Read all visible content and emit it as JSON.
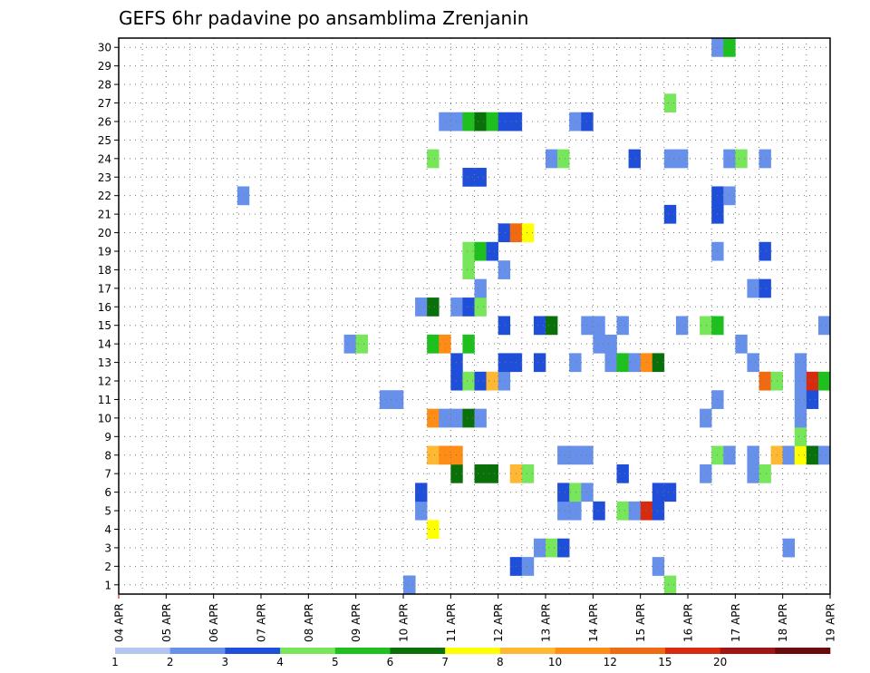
{
  "chart_data": {
    "type": "heatmap",
    "title": "GEFS 6hr padavine po ansamblima Zrenjanin",
    "x_ticks": [
      "04 APR",
      "05 APR",
      "06 APR",
      "07 APR",
      "08 APR",
      "09 APR",
      "10 APR",
      "11 APR",
      "12 APR",
      "13 APR",
      "14 APR",
      "15 APR",
      "16 APR",
      "17 APR",
      "18 APR",
      "19 APR"
    ],
    "y_ticks": [
      1,
      2,
      3,
      4,
      5,
      6,
      7,
      8,
      9,
      10,
      11,
      12,
      13,
      14,
      15,
      16,
      17,
      18,
      19,
      20,
      21,
      22,
      23,
      24,
      25,
      26,
      27,
      28,
      29,
      30
    ],
    "grid": true,
    "legend": {
      "placement": "bottom",
      "thresholds": [
        "1",
        "2",
        "3",
        "4",
        "5",
        "6",
        "7",
        "8",
        "10",
        "12",
        "15",
        "20"
      ],
      "colors": [
        "#b3c6f2",
        "#6690ea",
        "#1f4ed9",
        "#77e65a",
        "#1dc01d",
        "#0a700a",
        "#ffff00",
        "#ffb833",
        "#ff8c14",
        "#ef6a10",
        "#d62b0f",
        "#a01414",
        "#6a0a0a"
      ]
    },
    "cells": [
      {
        "t": "2026-04-10 00:00",
        "m": [
          1,
          1,
          1
        ],
        "c": [
          4,
          5,
          1
        ]
      },
      {
        "t": "2026-04-08 18:00",
        "m": [
          14
        ],
        "c": [
          1
        ]
      },
      {
        "t": "2026-04-09 00:00",
        "m": [
          14
        ],
        "c": [
          3
        ]
      },
      {
        "t": "2026-04-09 12:00",
        "m": [
          11
        ],
        "c": [
          1
        ]
      },
      {
        "t": "2026-04-09 18:00",
        "m": [
          11
        ],
        "c": [
          1
        ]
      },
      {
        "t": "2026-04-06 12:00",
        "m": [
          22
        ],
        "c": [
          1
        ]
      },
      {
        "t": "2026-04-10 06:00",
        "m": [
          5,
          6,
          16
        ],
        "c": [
          1,
          2,
          1
        ]
      },
      {
        "t": "2026-04-10 12:00",
        "m": [
          4,
          8,
          10,
          14,
          16,
          24
        ],
        "c": [
          6,
          7,
          8,
          4,
          5,
          3
        ]
      },
      {
        "t": "2026-04-10 18:00",
        "m": [
          8,
          10,
          14,
          26
        ],
        "c": [
          8,
          1,
          8,
          1
        ]
      },
      {
        "t": "2026-04-11 00:00",
        "m": [
          7,
          8,
          10,
          12,
          13,
          16,
          26
        ],
        "c": [
          5,
          8,
          1,
          2,
          2,
          1,
          1
        ]
      },
      {
        "t": "2026-04-11 06:00",
        "m": [
          10,
          12,
          14,
          16,
          18,
          19,
          23,
          26
        ],
        "c": [
          5,
          3,
          4,
          2,
          3,
          3,
          2,
          4
        ]
      },
      {
        "t": "2026-04-11 12:00",
        "m": [
          7,
          10,
          12,
          16,
          17,
          19,
          23,
          26
        ],
        "c": [
          5,
          1,
          2,
          3,
          1,
          4,
          2,
          5
        ]
      },
      {
        "t": "2026-04-11 18:00",
        "m": [
          7,
          12,
          19,
          26
        ],
        "c": [
          5,
          7,
          2,
          4
        ]
      },
      {
        "t": "2026-04-12 00:00",
        "m": [
          12,
          13,
          15,
          18,
          20,
          26
        ],
        "c": [
          1,
          2,
          2,
          1,
          2,
          2
        ]
      },
      {
        "t": "2026-04-12 06:00",
        "m": [
          2,
          7,
          13,
          20,
          26
        ],
        "c": [
          2,
          7,
          2,
          9,
          2
        ]
      },
      {
        "t": "2026-04-12 12:00",
        "m": [
          2,
          7,
          20
        ],
        "c": [
          1,
          3,
          6
        ]
      },
      {
        "t": "2026-04-12 18:00",
        "m": [
          3,
          13,
          15
        ],
        "c": [
          1,
          2,
          2
        ]
      },
      {
        "t": "2026-04-13 00:00",
        "m": [
          3,
          15,
          24
        ],
        "c": [
          3,
          5,
          1
        ]
      },
      {
        "t": "2026-04-13 06:00",
        "m": [
          3,
          5,
          6,
          8,
          24
        ],
        "c": [
          2,
          1,
          2,
          1,
          3
        ]
      },
      {
        "t": "2026-04-13 12:00",
        "m": [
          5,
          6,
          8,
          13,
          26
        ],
        "c": [
          1,
          3,
          1,
          1,
          1
        ]
      },
      {
        "t": "2026-04-13 18:00",
        "m": [
          6,
          8,
          15,
          26
        ],
        "c": [
          1,
          1,
          1,
          2
        ]
      },
      {
        "t": "2026-04-14 00:00",
        "m": [
          5,
          14,
          15
        ],
        "c": [
          2,
          1,
          1
        ]
      },
      {
        "t": "2026-04-14 06:00",
        "m": [
          13,
          14
        ],
        "c": [
          1,
          1
        ]
      },
      {
        "t": "2026-04-14 12:00",
        "m": [
          5,
          7,
          13,
          15
        ],
        "c": [
          3,
          2,
          4,
          1
        ]
      },
      {
        "t": "2026-04-14 18:00",
        "m": [
          5,
          13,
          24
        ],
        "c": [
          1,
          1,
          2
        ]
      },
      {
        "t": "2026-04-15 00:00",
        "m": [
          5,
          13
        ],
        "c": [
          10,
          8
        ]
      },
      {
        "t": "2026-04-15 06:00",
        "m": [
          2,
          5,
          6,
          13
        ],
        "c": [
          1,
          2,
          2,
          5
        ]
      },
      {
        "t": "2026-04-15 12:00",
        "m": [
          1,
          6,
          21,
          24,
          27
        ],
        "c": [
          3,
          2,
          2,
          1,
          3
        ]
      },
      {
        "t": "2026-04-15 18:00",
        "m": [
          15,
          24
        ],
        "c": [
          1,
          1
        ]
      },
      {
        "t": "2026-04-16 06:00",
        "m": [
          7,
          10,
          15
        ],
        "c": [
          1,
          1,
          3
        ]
      },
      {
        "t": "2026-04-16 12:00",
        "m": [
          8,
          11,
          15,
          19,
          21,
          22,
          30
        ],
        "c": [
          3,
          1,
          4,
          1,
          2,
          2,
          1
        ]
      },
      {
        "t": "2026-04-16 18:00",
        "m": [
          8,
          22,
          24,
          30
        ],
        "c": [
          1,
          1,
          1,
          4
        ]
      },
      {
        "t": "2026-04-17 00:00",
        "m": [
          14,
          24
        ],
        "c": [
          1,
          3
        ]
      },
      {
        "t": "2026-04-17 06:00",
        "m": [
          7,
          8,
          13,
          17
        ],
        "c": [
          1,
          1,
          1,
          1
        ]
      },
      {
        "t": "2026-04-17 12:00",
        "m": [
          7,
          12,
          17,
          19,
          24
        ],
        "c": [
          3,
          9,
          2,
          2,
          1
        ]
      },
      {
        "t": "2026-04-17 18:00",
        "m": [
          8,
          12
        ],
        "c": [
          7,
          3
        ]
      },
      {
        "t": "2026-04-18 00:00",
        "m": [
          3,
          8
        ],
        "c": [
          1,
          1
        ]
      },
      {
        "t": "2026-04-18 06:00",
        "m": [
          8,
          9,
          10,
          11,
          12,
          13
        ],
        "c": [
          6,
          3,
          1,
          1,
          1,
          1
        ]
      },
      {
        "t": "2026-04-18 12:00",
        "m": [
          8,
          11,
          12
        ],
        "c": [
          5,
          2,
          10
        ]
      },
      {
        "t": "2026-04-18 18:00",
        "m": [
          8,
          12,
          15
        ],
        "c": [
          1,
          4,
          1
        ]
      }
    ]
  }
}
